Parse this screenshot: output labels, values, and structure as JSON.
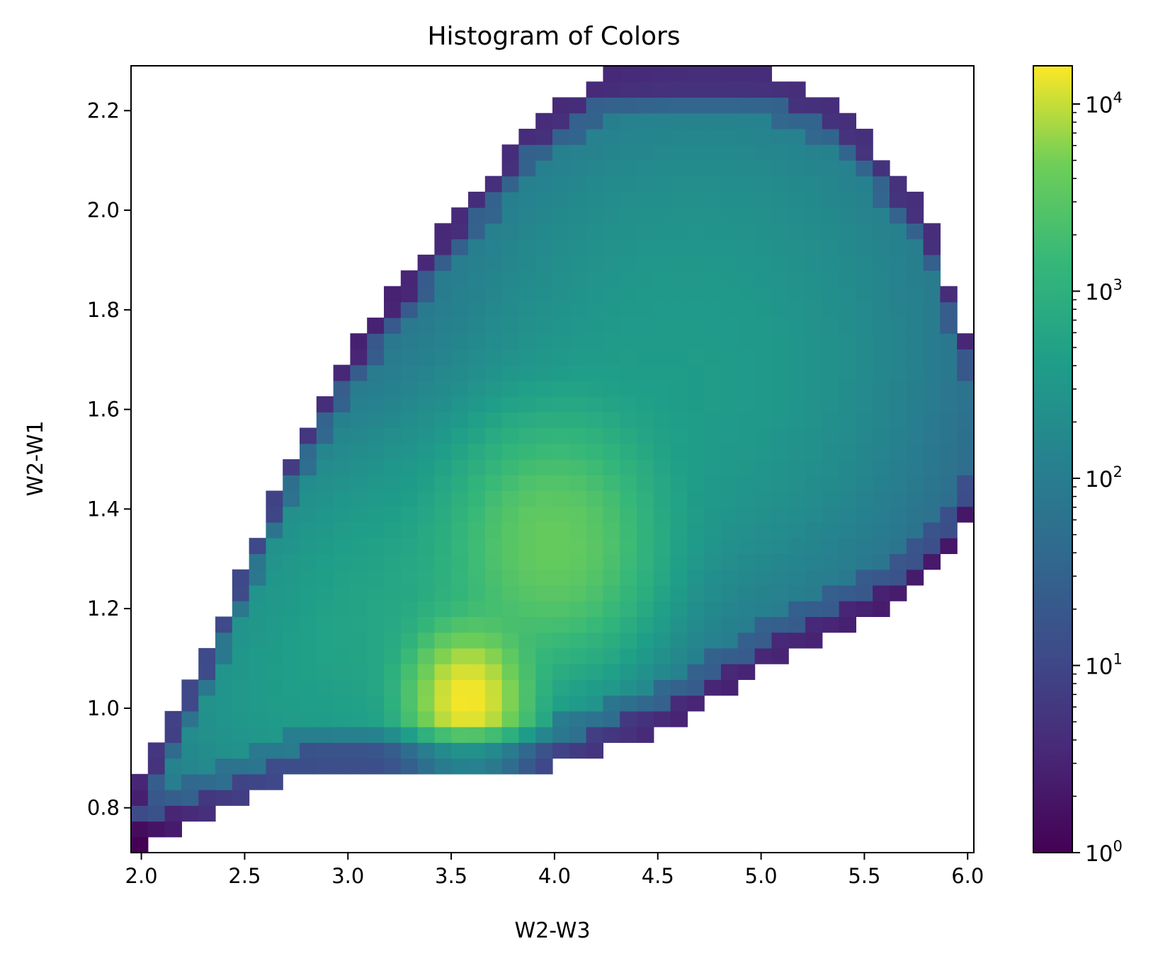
{
  "chart_data": {
    "type": "heatmap",
    "title": "Histogram of Colors",
    "xlabel": "W2-W3",
    "ylabel": "W2-W1",
    "xlim": [
      1.95,
      6.03
    ],
    "ylim": [
      0.71,
      2.29
    ],
    "xticks": [
      2.0,
      2.5,
      3.0,
      3.5,
      4.0,
      4.5,
      5.0,
      5.5,
      6.0
    ],
    "xtick_labels": [
      "2.0",
      "2.5",
      "3.0",
      "3.5",
      "4.0",
      "4.5",
      "5.0",
      "5.5",
      "6.0"
    ],
    "yticks": [
      0.8,
      1.0,
      1.2,
      1.4,
      1.6,
      1.8,
      2.0,
      2.2
    ],
    "ytick_labels": [
      "0.8",
      "1.0",
      "1.2",
      "1.4",
      "1.6",
      "1.8",
      "2.0",
      "2.2"
    ],
    "bins": {
      "x": 50,
      "y": 50
    },
    "colormap": "viridis",
    "color_scale": "log",
    "color_range": [
      1,
      16000
    ],
    "colorbar": {
      "ticks": [
        1,
        10,
        100,
        1000,
        10000
      ],
      "tick_labels": [
        "10^0",
        "10^1",
        "10^2",
        "10^3",
        "10^4"
      ]
    },
    "density_components": [
      {
        "x": 3.58,
        "y": 1.02,
        "sx": 0.14,
        "sy": 0.07,
        "weight": 15000
      },
      {
        "x": 4.0,
        "y": 1.33,
        "sx": 0.26,
        "sy": 0.13,
        "weight": 3600
      },
      {
        "x": 3.3,
        "y": 1.18,
        "sx": 0.55,
        "sy": 0.22,
        "weight": 600
      },
      {
        "x": 4.6,
        "y": 1.6,
        "sx": 0.7,
        "sy": 0.28,
        "weight": 350
      },
      {
        "x": 4.8,
        "y": 2.0,
        "sx": 0.8,
        "sy": 0.25,
        "weight": 120
      },
      {
        "x": 2.5,
        "y": 0.98,
        "sx": 0.4,
        "sy": 0.14,
        "weight": 180
      }
    ],
    "support_boundary": {
      "lower_edge": [
        [
          1.95,
          0.71
        ],
        [
          2.3,
          0.78
        ],
        [
          2.8,
          0.87
        ],
        [
          3.4,
          0.88
        ],
        [
          4.0,
          0.88
        ],
        [
          4.6,
          0.97
        ],
        [
          5.1,
          1.1
        ],
        [
          5.6,
          1.19
        ],
        [
          5.9,
          1.29
        ],
        [
          6.03,
          1.4
        ]
      ],
      "upper_edge": [
        [
          1.95,
          0.83
        ],
        [
          2.3,
          1.1
        ],
        [
          2.7,
          1.48
        ],
        [
          3.0,
          1.72
        ],
        [
          3.3,
          1.88
        ],
        [
          3.6,
          2.03
        ],
        [
          3.9,
          2.18
        ],
        [
          4.3,
          2.29
        ],
        [
          5.0,
          2.29
        ],
        [
          5.4,
          2.2
        ],
        [
          5.8,
          2.0
        ],
        [
          6.03,
          1.7
        ]
      ]
    }
  }
}
